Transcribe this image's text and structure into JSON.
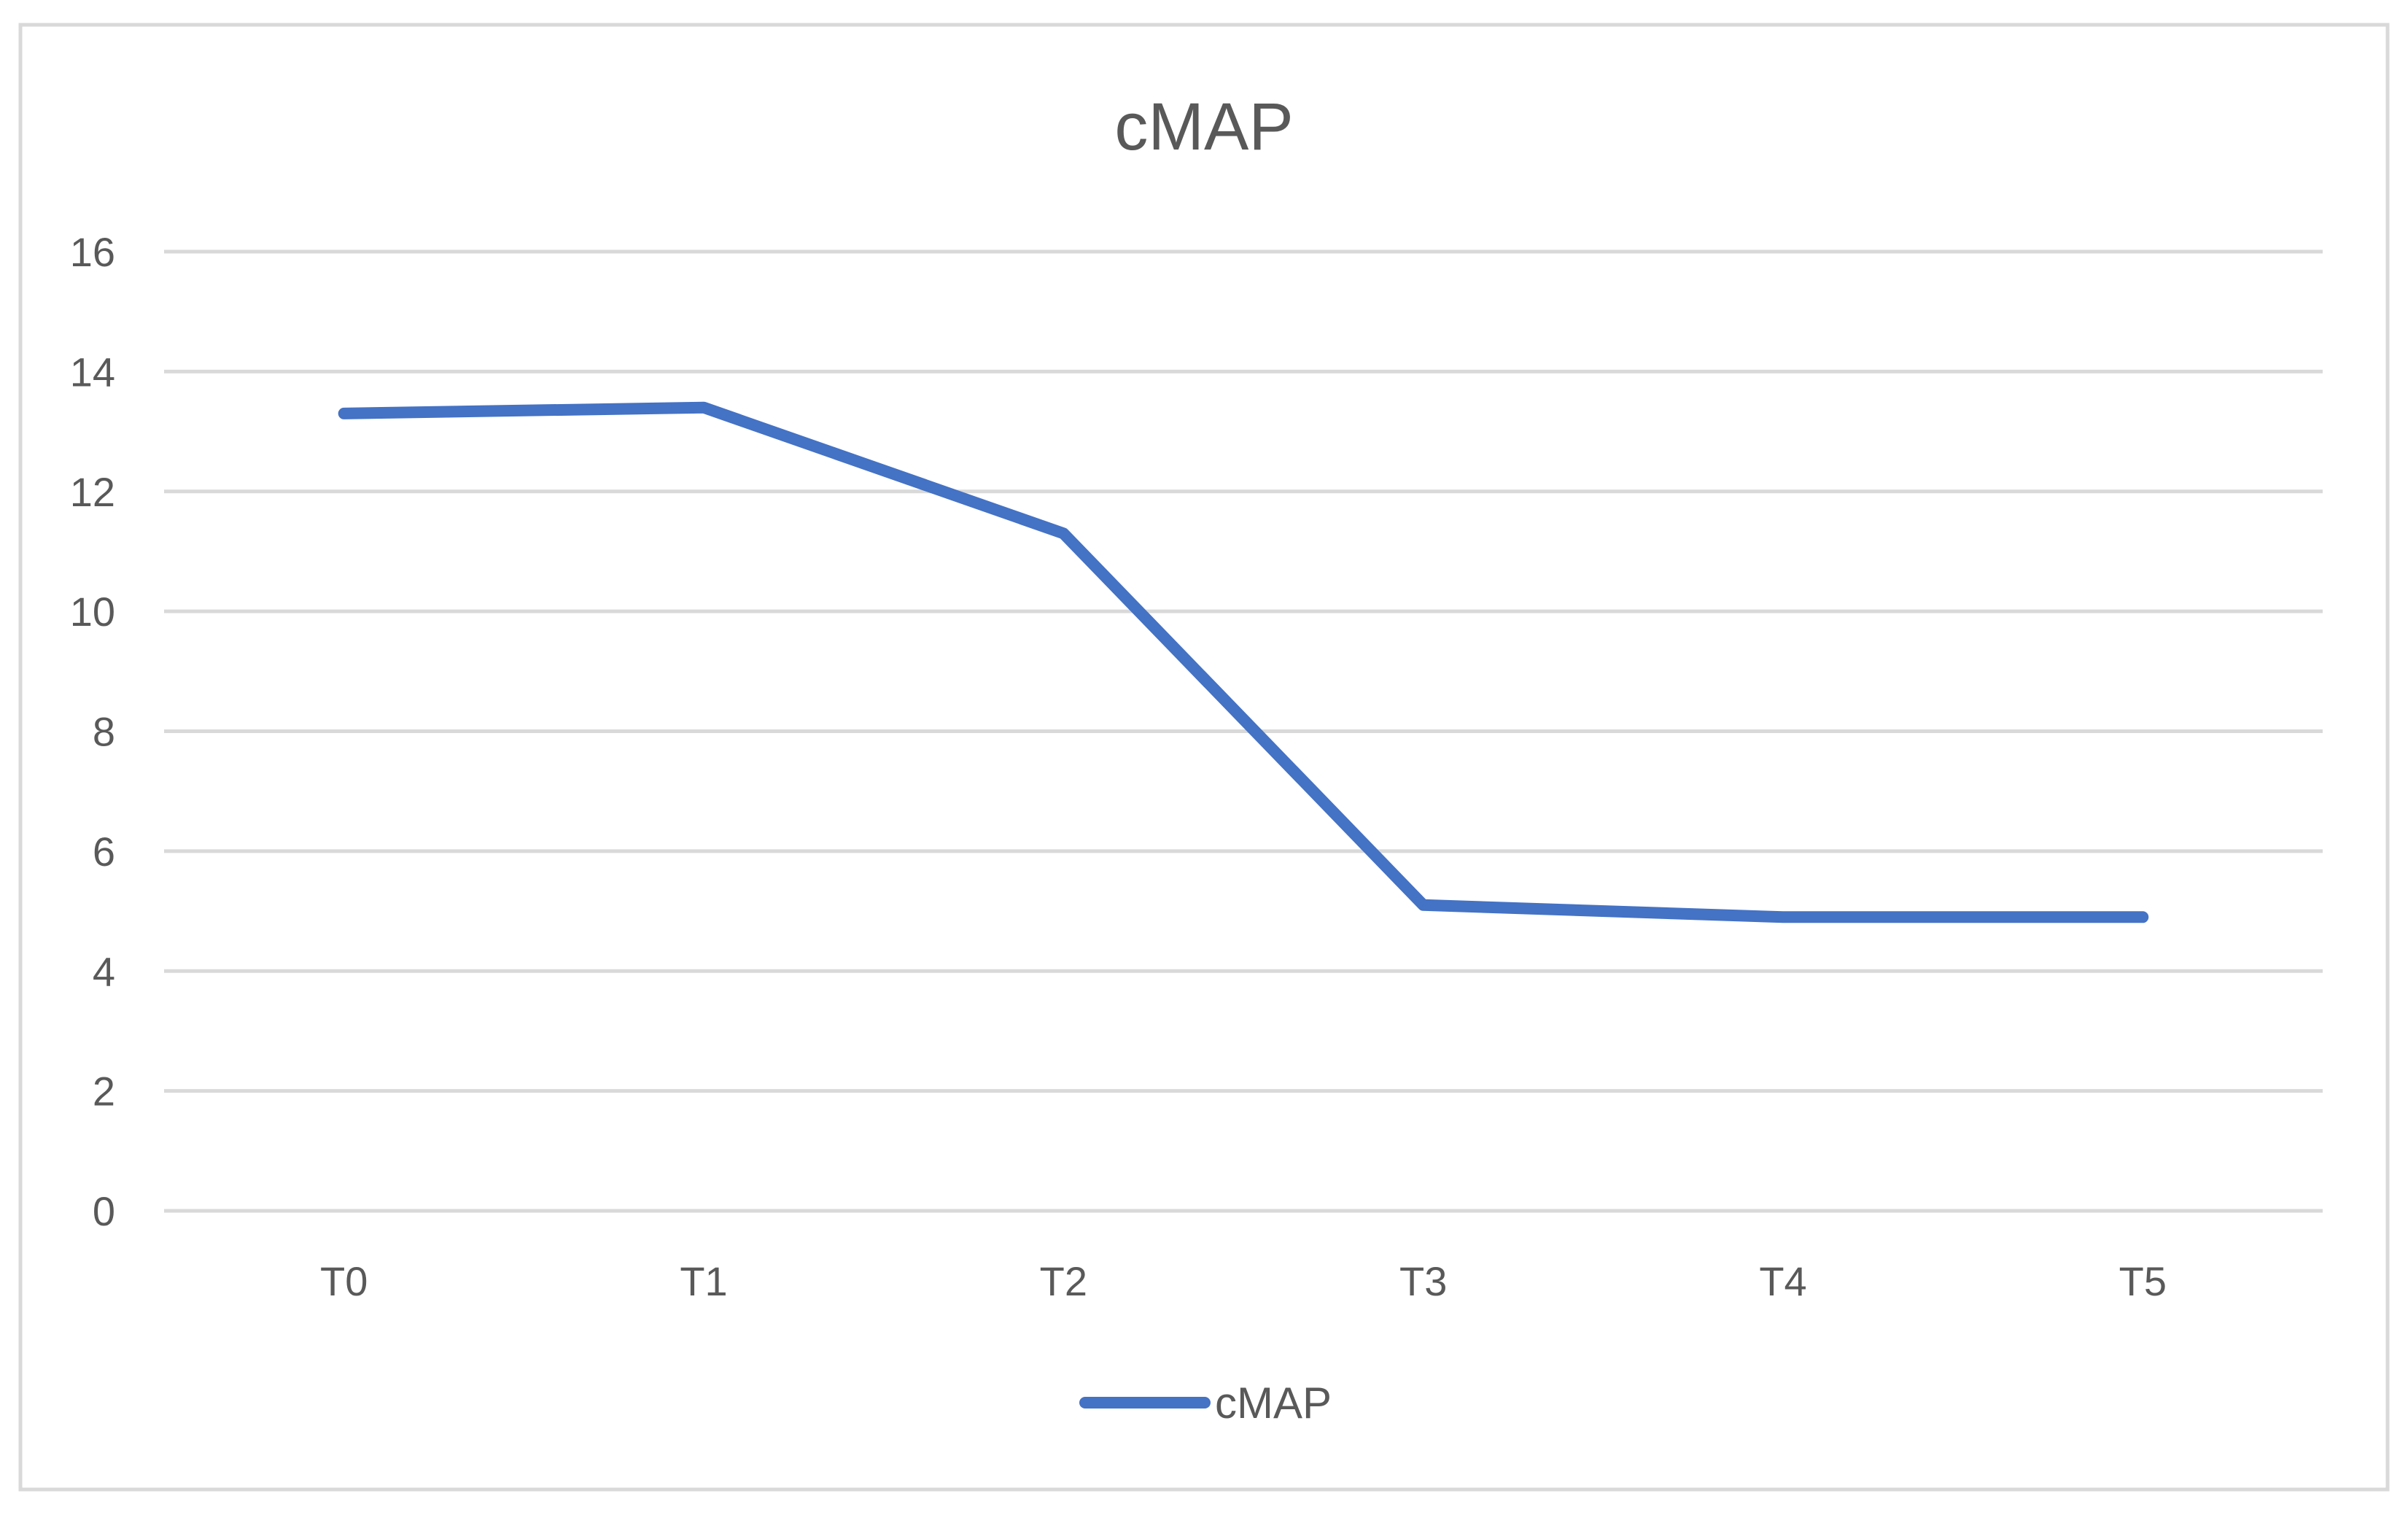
{
  "chart_data": {
    "type": "line",
    "title": "cMAP",
    "xlabel": "",
    "ylabel": "",
    "categories": [
      "T0",
      "T1",
      "T2",
      "T3",
      "T4",
      "T5"
    ],
    "series": [
      {
        "name": "cMAP",
        "values": [
          13.3,
          13.4,
          11.3,
          5.1,
          4.9,
          4.9
        ],
        "color": "#4472C4"
      }
    ],
    "ylim": [
      0,
      16
    ],
    "yticks": [
      "0",
      "2",
      "4",
      "6",
      "8",
      "10",
      "12",
      "14",
      "16"
    ],
    "grid": true,
    "legend": "bottom-center"
  }
}
